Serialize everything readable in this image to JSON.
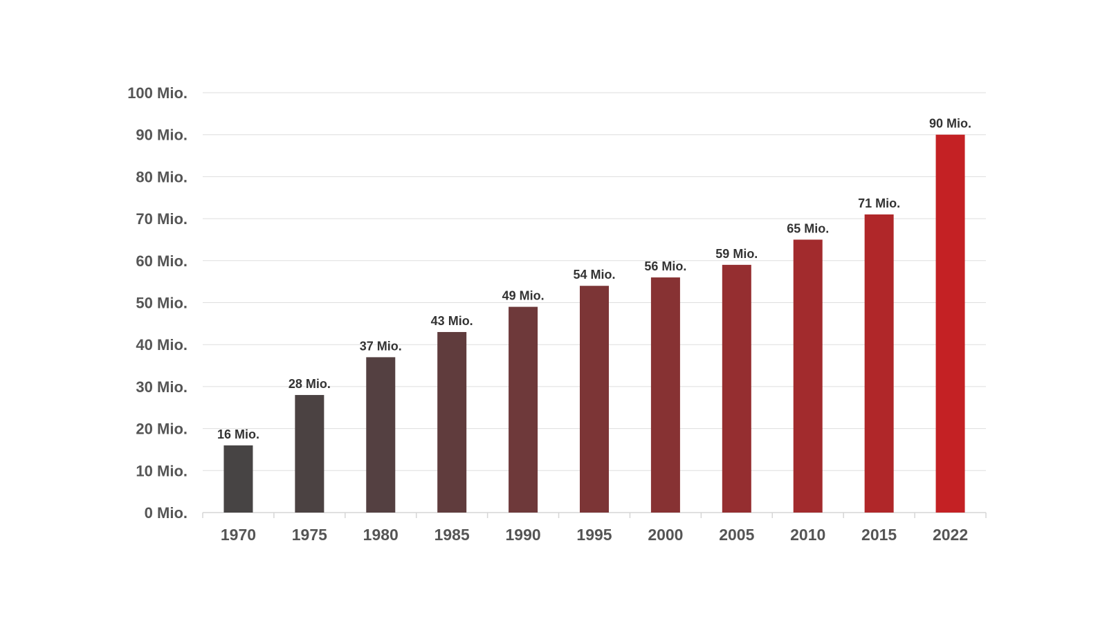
{
  "chart_data": {
    "type": "bar",
    "title": "",
    "xlabel": "",
    "ylabel": "",
    "categories": [
      "1970",
      "1975",
      "1980",
      "1985",
      "1990",
      "1995",
      "2000",
      "2005",
      "2010",
      "2015",
      "2022"
    ],
    "values": [
      16,
      28,
      37,
      43,
      49,
      54,
      56,
      59,
      65,
      71,
      90
    ],
    "value_labels": [
      "16 Mio.",
      "28 Mio.",
      "37 Mio.",
      "43 Mio.",
      "49 Mio.",
      "54 Mio.",
      "56 Mio.",
      "59 Mio.",
      "65 Mio.",
      "71 Mio.",
      "90 Mio."
    ],
    "ylim": [
      0,
      100
    ],
    "y_ticks": [
      0,
      10,
      20,
      30,
      40,
      50,
      60,
      70,
      80,
      90,
      100
    ],
    "y_tick_labels": [
      "0 Mio.",
      "10 Mio.",
      "20 Mio.",
      "30 Mio.",
      "40 Mio.",
      "50 Mio.",
      "60 Mio.",
      "70 Mio.",
      "80 Mio.",
      "90 Mio.",
      "100 Mio."
    ],
    "grid": true,
    "legend": "none",
    "bar_colors": [
      "#474444",
      "#4b4242",
      "#544041",
      "#603c3d",
      "#6e393a",
      "#7c3536",
      "#873233",
      "#952e30",
      "#a22b2d",
      "#b02729",
      "#c42124"
    ]
  }
}
